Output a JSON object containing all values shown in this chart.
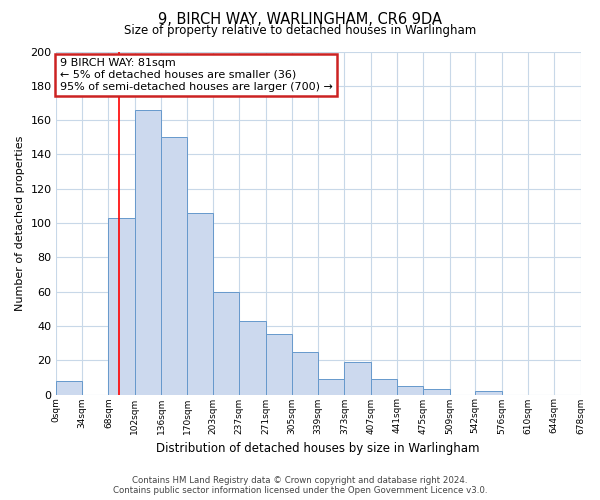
{
  "title": "9, BIRCH WAY, WARLINGHAM, CR6 9DA",
  "subtitle": "Size of property relative to detached houses in Warlingham",
  "xlabel": "Distribution of detached houses by size in Warlingham",
  "ylabel": "Number of detached properties",
  "bin_edges": [
    0,
    34,
    68,
    102,
    136,
    170,
    203,
    237,
    271,
    305,
    339,
    373,
    407,
    441,
    475,
    509,
    542,
    576,
    610,
    644,
    678
  ],
  "bin_labels": [
    "0sqm",
    "34sqm",
    "68sqm",
    "102sqm",
    "136sqm",
    "170sqm",
    "203sqm",
    "237sqm",
    "271sqm",
    "305sqm",
    "339sqm",
    "373sqm",
    "407sqm",
    "441sqm",
    "475sqm",
    "509sqm",
    "542sqm",
    "576sqm",
    "610sqm",
    "644sqm",
    "678sqm"
  ],
  "counts": [
    8,
    0,
    103,
    166,
    150,
    106,
    60,
    43,
    35,
    25,
    9,
    19,
    9,
    5,
    3,
    0,
    2,
    0,
    0,
    0
  ],
  "bar_color": "#ccd9ee",
  "bar_edge_color": "#6699cc",
  "vline_x": 81,
  "vline_color": "red",
  "ylim": [
    0,
    200
  ],
  "yticks": [
    0,
    20,
    40,
    60,
    80,
    100,
    120,
    140,
    160,
    180,
    200
  ],
  "annotation_line1": "9 BIRCH WAY: 81sqm",
  "annotation_line2": "← 5% of detached houses are smaller (36)",
  "annotation_line3": "95% of semi-detached houses are larger (700) →",
  "annotation_box_color": "white",
  "annotation_box_edge": "#cc2222",
  "footer1": "Contains HM Land Registry data © Crown copyright and database right 2024.",
  "footer2": "Contains public sector information licensed under the Open Government Licence v3.0.",
  "bg_color": "white",
  "grid_color": "#c8d8e8"
}
